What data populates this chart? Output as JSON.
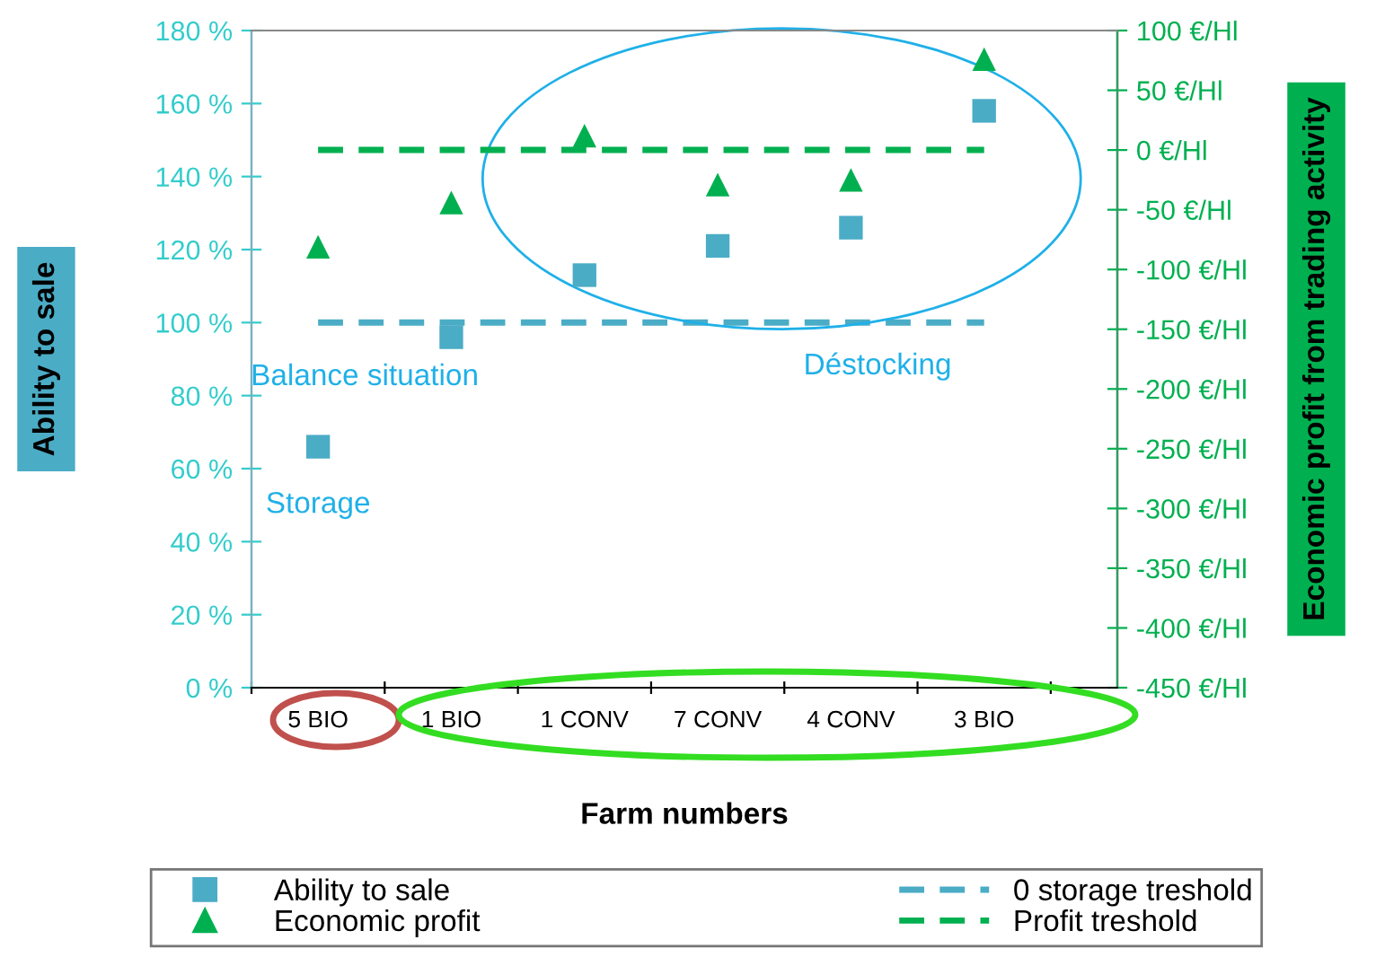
{
  "chart_data": {
    "type": "scatter",
    "xlabel": "Farm numbers",
    "ylabel": "Ability to sale",
    "y2label": "Economic profit from trading activity",
    "categories": [
      "5 BIO",
      "1 BIO",
      "1 CONV",
      "7 CONV",
      "4 CONV",
      "3 BIO"
    ],
    "series": [
      {
        "name": "Ability to sale",
        "color": "#4bacc6",
        "marker": "square",
        "values": [
          66,
          96,
          113,
          121,
          126,
          158
        ]
      },
      {
        "name": "Economic profit",
        "color": "#00b050",
        "marker": "triangle",
        "axis": "y2",
        "values": [
          -81,
          -44,
          12,
          -29,
          -25,
          76
        ]
      }
    ],
    "ylim": [
      0,
      180
    ],
    "yticks": [
      {
        "value": 0,
        "label": "0 %"
      },
      {
        "value": 20,
        "label": "20 %"
      },
      {
        "value": 40,
        "label": "40 %"
      },
      {
        "value": 60,
        "label": "60 %"
      },
      {
        "value": 80,
        "label": "80 %"
      },
      {
        "value": 100,
        "label": "100 %"
      },
      {
        "value": 120,
        "label": "120 %"
      },
      {
        "value": 140,
        "label": "140 %"
      },
      {
        "value": 160,
        "label": "160 %"
      },
      {
        "value": 180,
        "label": "180 %"
      }
    ],
    "y2lim": [
      -450,
      100
    ],
    "y2ticks": [
      {
        "value": -450,
        "label": "-450 €/Hl"
      },
      {
        "value": -400,
        "label": "-400 €/Hl"
      },
      {
        "value": -350,
        "label": "-350 €/Hl"
      },
      {
        "value": -300,
        "label": "-300 €/Hl"
      },
      {
        "value": -250,
        "label": "-250 €/Hl"
      },
      {
        "value": -200,
        "label": "-200 €/Hl"
      },
      {
        "value": -150,
        "label": "-150 €/Hl"
      },
      {
        "value": -100,
        "label": "-100 €/Hl"
      },
      {
        "value": -50,
        "label": "-50 €/Hl"
      },
      {
        "value": 0,
        "label": "0 €/Hl"
      },
      {
        "value": 50,
        "label": "50 €/Hl"
      },
      {
        "value": 100,
        "label": "100 €/Hl"
      }
    ],
    "ref_lines": [
      {
        "axis": "y",
        "value": 100,
        "label": "0 storage treshold",
        "color": "#4bacc6",
        "line_style": "dashed"
      },
      {
        "axis": "y2",
        "value": 0,
        "label": "Profit treshold",
        "color": "#00b050",
        "line_style": "dashed"
      }
    ],
    "annotations": [
      "Balance situation",
      "Storage",
      "Déstocking"
    ],
    "legend": "bottom",
    "grid": false
  }
}
